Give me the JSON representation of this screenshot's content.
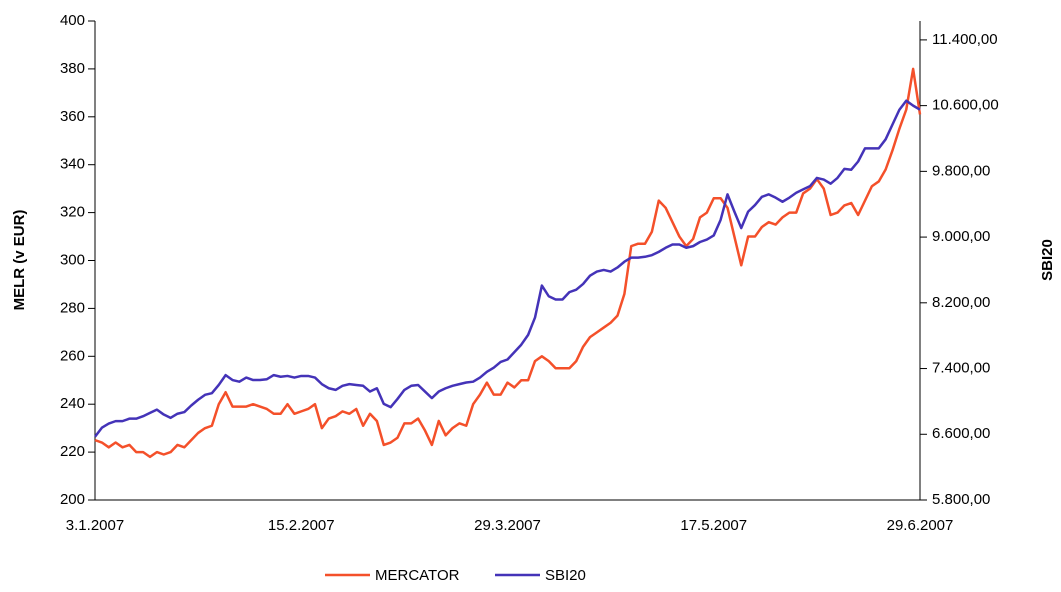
{
  "chart_data": {
    "type": "line",
    "ylabel": "MELR (v EUR)",
    "y2label": "SBI20",
    "categories": [
      "3.1.2007",
      null,
      null,
      null,
      null,
      null,
      null,
      null,
      null,
      null,
      null,
      null,
      null,
      null,
      null,
      null,
      null,
      null,
      null,
      null,
      null,
      null,
      null,
      null,
      null,
      null,
      null,
      null,
      null,
      null,
      "15.2.2007",
      null,
      null,
      null,
      null,
      null,
      null,
      null,
      null,
      null,
      null,
      null,
      null,
      null,
      null,
      null,
      null,
      null,
      null,
      null,
      null,
      null,
      null,
      null,
      null,
      null,
      null,
      null,
      null,
      null,
      "29.3.2007",
      null,
      null,
      null,
      null,
      null,
      null,
      null,
      null,
      null,
      null,
      null,
      null,
      null,
      null,
      null,
      null,
      null,
      null,
      null,
      null,
      null,
      null,
      null,
      null,
      null,
      null,
      null,
      null,
      null,
      "17.5.2007",
      null,
      null,
      null,
      null,
      null,
      null,
      null,
      null,
      null,
      null,
      null,
      null,
      null,
      null,
      null,
      null,
      null,
      null,
      null,
      null,
      null,
      null,
      null,
      null,
      null,
      null,
      null,
      null,
      null,
      "29.6.2007"
    ],
    "series": [
      {
        "name": "MERCATOR",
        "color": "#f4502a",
        "axis": "y",
        "values": [
          225,
          224,
          222,
          224,
          222,
          223,
          220,
          220,
          218,
          220,
          219,
          220,
          223,
          222,
          225,
          228,
          230,
          231,
          240,
          245,
          239,
          239,
          239,
          240,
          239,
          238,
          236,
          236,
          240,
          236,
          237,
          238,
          240,
          230,
          234,
          235,
          237,
          236,
          238,
          231,
          236,
          233,
          223,
          224,
          226,
          232,
          232,
          234,
          229,
          223,
          233,
          227,
          230,
          232,
          231,
          240,
          244,
          249,
          244,
          244,
          249,
          247,
          250,
          250,
          258,
          260,
          258,
          255,
          255,
          255,
          258,
          264,
          268,
          270,
          272,
          274,
          277,
          286,
          306,
          307,
          307,
          312,
          325,
          322,
          316,
          310,
          306,
          309,
          318,
          320,
          326,
          326,
          322,
          310,
          298,
          310,
          310,
          314,
          316,
          315,
          318,
          320,
          320,
          328,
          330,
          334,
          330,
          319,
          320,
          323,
          324,
          319,
          325,
          331,
          333,
          338,
          346,
          355,
          363,
          380,
          361
        ]
      },
      {
        "name": "SBI20",
        "color": "#4433b8",
        "axis": "y2",
        "values": [
          6570,
          6680,
          6730,
          6760,
          6760,
          6790,
          6790,
          6820,
          6860,
          6900,
          6840,
          6800,
          6850,
          6870,
          6950,
          7020,
          7080,
          7100,
          7200,
          7320,
          7260,
          7240,
          7290,
          7260,
          7260,
          7270,
          7320,
          7300,
          7310,
          7290,
          7310,
          7310,
          7290,
          7210,
          7160,
          7140,
          7190,
          7210,
          7200,
          7190,
          7120,
          7160,
          6970,
          6930,
          7030,
          7140,
          7190,
          7200,
          7120,
          7040,
          7120,
          7160,
          7190,
          7210,
          7230,
          7240,
          7290,
          7360,
          7410,
          7480,
          7510,
          7600,
          7690,
          7810,
          8020,
          8410,
          8280,
          8240,
          8240,
          8330,
          8360,
          8430,
          8530,
          8580,
          8600,
          8580,
          8630,
          8700,
          8750,
          8750,
          8760,
          8780,
          8820,
          8870,
          8910,
          8910,
          8870,
          8890,
          8940,
          8970,
          9020,
          9210,
          9520,
          9310,
          9110,
          9310,
          9390,
          9490,
          9520,
          9480,
          9430,
          9480,
          9540,
          9580,
          9620,
          9720,
          9700,
          9650,
          9720,
          9830,
          9820,
          9920,
          10080,
          10080,
          10080,
          10190,
          10370,
          10550,
          10660,
          10600,
          10550
        ]
      }
    ],
    "ylim": [
      200,
      400
    ],
    "yticks": [
      200,
      220,
      240,
      260,
      280,
      300,
      320,
      340,
      360,
      380,
      400
    ],
    "y2lim": [
      5800,
      11630
    ],
    "y2ticks": [
      {
        "value": 5800,
        "label": "5.800,00"
      },
      {
        "value": 6600,
        "label": "6.600,00"
      },
      {
        "value": 7400,
        "label": "7.400,00"
      },
      {
        "value": 8200,
        "label": "8.200,00"
      },
      {
        "value": 9000,
        "label": "9.000,00"
      },
      {
        "value": 9800,
        "label": "9.800,00"
      },
      {
        "value": 10600,
        "label": "10.600,00"
      },
      {
        "value": 11400,
        "label": "11.400,00"
      }
    ],
    "grid": false,
    "legend": "bottom"
  }
}
